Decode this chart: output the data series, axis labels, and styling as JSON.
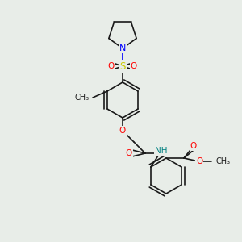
{
  "bg_color": "#e8ede8",
  "bond_color": "#1a1a1a",
  "bond_width": 1.2,
  "atom_colors": {
    "N": "#0000ff",
    "O": "#ff0000",
    "S": "#cccc00",
    "NH": "#008080",
    "C": "#1a1a1a"
  },
  "font_size": 7.5
}
